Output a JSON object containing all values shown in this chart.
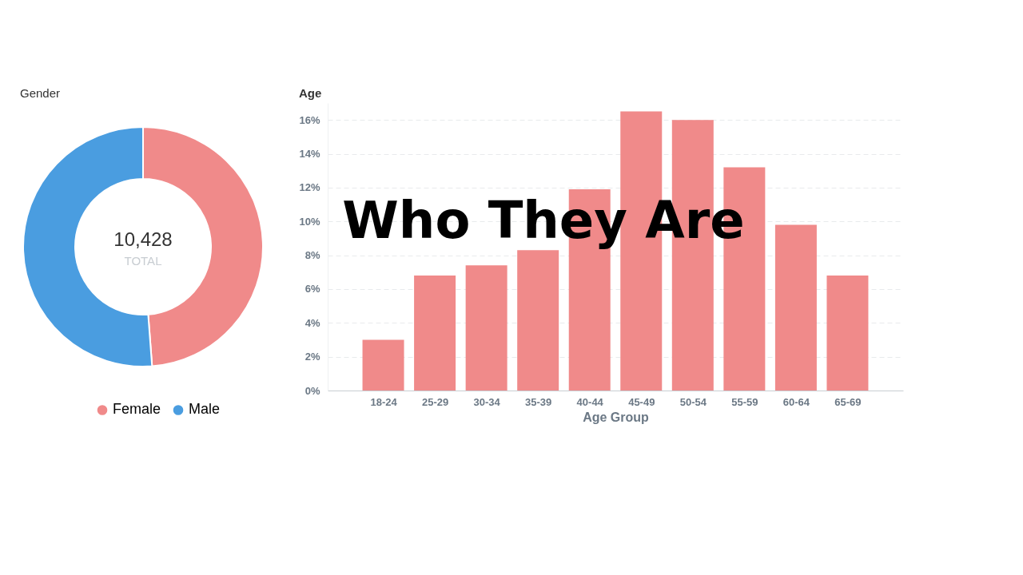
{
  "chart_data": [
    {
      "type": "donut",
      "title": "Gender",
      "categories": [
        "Female",
        "Male"
      ],
      "values": [
        48.8,
        51.2
      ],
      "colors": [
        "#f08a8a",
        "#4a9de0"
      ],
      "legend": "bottom",
      "annotations": [
        "10,428",
        "TOTAL"
      ]
    },
    {
      "type": "bar",
      "title": "Age",
      "xlabel": "Age Group",
      "categories": [
        "18-24",
        "25-29",
        "30-34",
        "35-39",
        "40-44",
        "45-49",
        "50-54",
        "55-59",
        "60-64",
        "65-69"
      ],
      "values": [
        3.0,
        6.8,
        7.4,
        8.3,
        11.9,
        16.5,
        16.0,
        13.2,
        9.8,
        6.8
      ],
      "color": "#f08a8a",
      "ylim": [
        0,
        17
      ],
      "yticks": [
        {
          "value": 0,
          "label": "0%"
        },
        {
          "value": 2,
          "label": "2%"
        },
        {
          "value": 4,
          "label": "4%"
        },
        {
          "value": 6,
          "label": "6%"
        },
        {
          "value": 8,
          "label": "8%"
        },
        {
          "value": 10,
          "label": "10%"
        },
        {
          "value": 12,
          "label": "12%"
        },
        {
          "value": 14,
          "label": "14%"
        },
        {
          "value": 16,
          "label": "16%"
        }
      ],
      "grid": "y",
      "annotations": [
        "Who They Are"
      ]
    }
  ]
}
